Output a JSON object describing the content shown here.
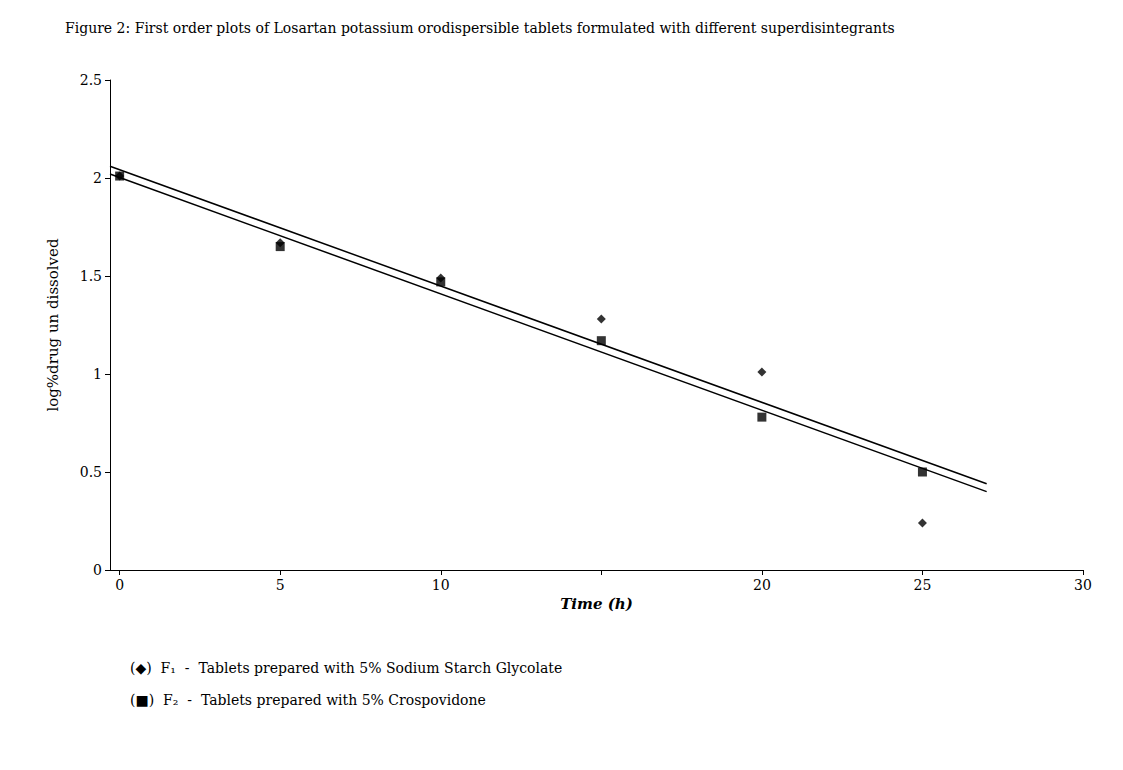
{
  "chart_data": {
    "type": "scatter",
    "title": "Figure 2: First order plots of Losartan potassium orodispersible tablets formulated with different superdisintegrants",
    "xlabel": "Time (h)",
    "ylabel": "log%drug un dissolved",
    "xlim": [
      -0.3,
      30
    ],
    "ylim": [
      0,
      2.5
    ],
    "xticks": [
      0,
      5,
      10,
      {
        "value": 15,
        "label": ""
      },
      20,
      25,
      30
    ],
    "yticks": [
      0,
      0.5,
      1.0,
      1.5,
      2.0,
      2.5
    ],
    "grid": false,
    "color": "#000000",
    "series": [
      {
        "type": "line",
        "line_style": "solid",
        "x": [
          -0.3,
          27
        ],
        "values": [
          2.06,
          0.44
        ]
      },
      {
        "type": "line",
        "line_style": "solid",
        "x": [
          -0.3,
          27
        ],
        "values": [
          2.02,
          0.4
        ]
      },
      {
        "type": "scatter",
        "marker": "diamond",
        "x": [
          0,
          5,
          10,
          15,
          20,
          25
        ],
        "values": [
          2.01,
          1.67,
          1.49,
          1.28,
          1.01,
          0.24
        ]
      },
      {
        "type": "scatter",
        "marker": "square",
        "x": [
          0,
          5,
          10,
          15,
          20,
          25
        ],
        "values": [
          2.01,
          1.65,
          1.47,
          1.17,
          0.78,
          0.5
        ]
      }
    ],
    "annotations": [
      "(◆)  F₁  -  Tablets prepared with 5% Sodium Starch Glycolate",
      "(■)  F₂  -  Tablets prepared with 5% Crospovidone"
    ]
  }
}
